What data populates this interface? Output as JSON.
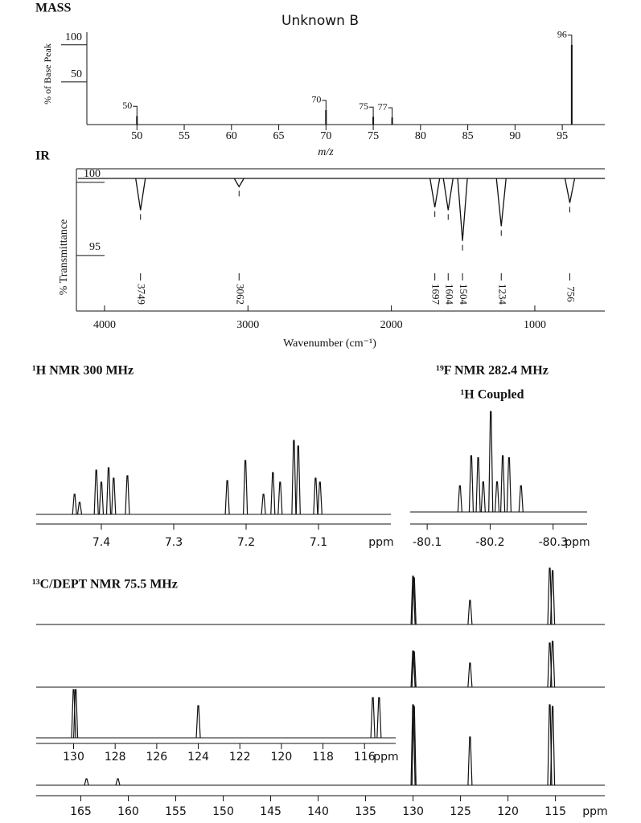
{
  "chart_data": [
    {
      "type": "bar",
      "section": "MASS",
      "title": "Unknown B",
      "x_label": "m/z",
      "y_label": "% of Base Peak",
      "x": [
        50,
        70,
        75,
        77,
        96
      ],
      "values": [
        4,
        12,
        3,
        2,
        100
      ],
      "xlim": [
        44.7,
        99.5
      ],
      "ylim": [
        0,
        117
      ],
      "xticks": [
        50,
        55,
        60,
        65,
        70,
        75,
        80,
        85,
        90,
        95
      ],
      "yticks": [
        50,
        100
      ],
      "color": "#111111"
    },
    {
      "type": "dip",
      "section": "IR",
      "x_label": "Wavenumber (cm⁻¹)",
      "y_label": "% Transmittance",
      "x": [
        3749,
        3062,
        1697,
        1604,
        1504,
        1234,
        756
      ],
      "values": [
        98.1,
        99.7,
        98.3,
        98.1,
        96.0,
        97.0,
        98.6
      ],
      "xlim": [
        4196,
        512
      ],
      "ylim": [
        91.2,
        100.93
      ],
      "xticks": [
        4000,
        3000,
        2000,
        1000
      ],
      "yticks": [
        95,
        100
      ],
      "color": "#111111"
    },
    {
      "type": "peaks",
      "title": "¹H NMR 300 MHz",
      "x_label": "ppm",
      "x": [
        7.437,
        7.43,
        7.407,
        7.4,
        7.39,
        7.383,
        7.364,
        7.226,
        7.201,
        7.176,
        7.163,
        7.153,
        7.134,
        7.128,
        7.104,
        7.098
      ],
      "values": [
        25,
        15,
        55,
        40,
        58,
        45,
        48,
        42,
        67,
        25,
        52,
        40,
        92,
        85,
        45,
        40
      ],
      "xlim": [
        7.49,
        7.0
      ],
      "xticks": [
        7.4,
        7.3,
        7.2,
        7.1
      ],
      "color": "#111111"
    },
    {
      "type": "peaks",
      "title": "¹⁹F NMR 282.4 MHz",
      "subtitle": "¹H Coupled",
      "x_label": "ppm",
      "x": [
        -80.152,
        -80.17,
        -80.181,
        -80.189,
        -80.201,
        -80.211,
        -80.22,
        -80.23,
        -80.249
      ],
      "values": [
        26,
        56,
        54,
        30,
        100,
        30,
        56,
        54,
        26
      ],
      "xlim": [
        -80.073,
        -80.354
      ],
      "xticks": [
        -80.1,
        -80.2,
        -80.3
      ],
      "color": "#111111"
    },
    {
      "type": "peaks",
      "title": "¹³C/DEPT NMR 75.5 MHz",
      "x_label": "ppm",
      "x": [
        164.4,
        161.1,
        130.0,
        129.9,
        124.0,
        115.6,
        115.3
      ],
      "series": [
        {
          "values": [
            null,
            null,
            60,
            58,
            30,
            70,
            67
          ]
        },
        {
          "values": [
            null,
            null,
            45,
            44,
            30,
            55,
            57
          ]
        },
        {
          "values": [
            8,
            8,
            100,
            98,
            60,
            100,
            98
          ]
        }
      ],
      "xlim": [
        169.7,
        109.8
      ],
      "xticks": [
        165,
        160,
        155,
        150,
        145,
        140,
        135,
        130,
        125,
        120,
        115
      ],
      "color": "#111111"
    },
    {
      "type": "peaks",
      "x_label": "ppm",
      "x": [
        130.0,
        129.9,
        124.0,
        115.6,
        115.3
      ],
      "values": [
        60,
        60,
        40,
        50,
        50
      ],
      "xlim": [
        131.8,
        114.5
      ],
      "xticks": [
        130,
        128,
        126,
        124,
        122,
        120,
        118,
        116
      ],
      "color": "#111111"
    }
  ]
}
